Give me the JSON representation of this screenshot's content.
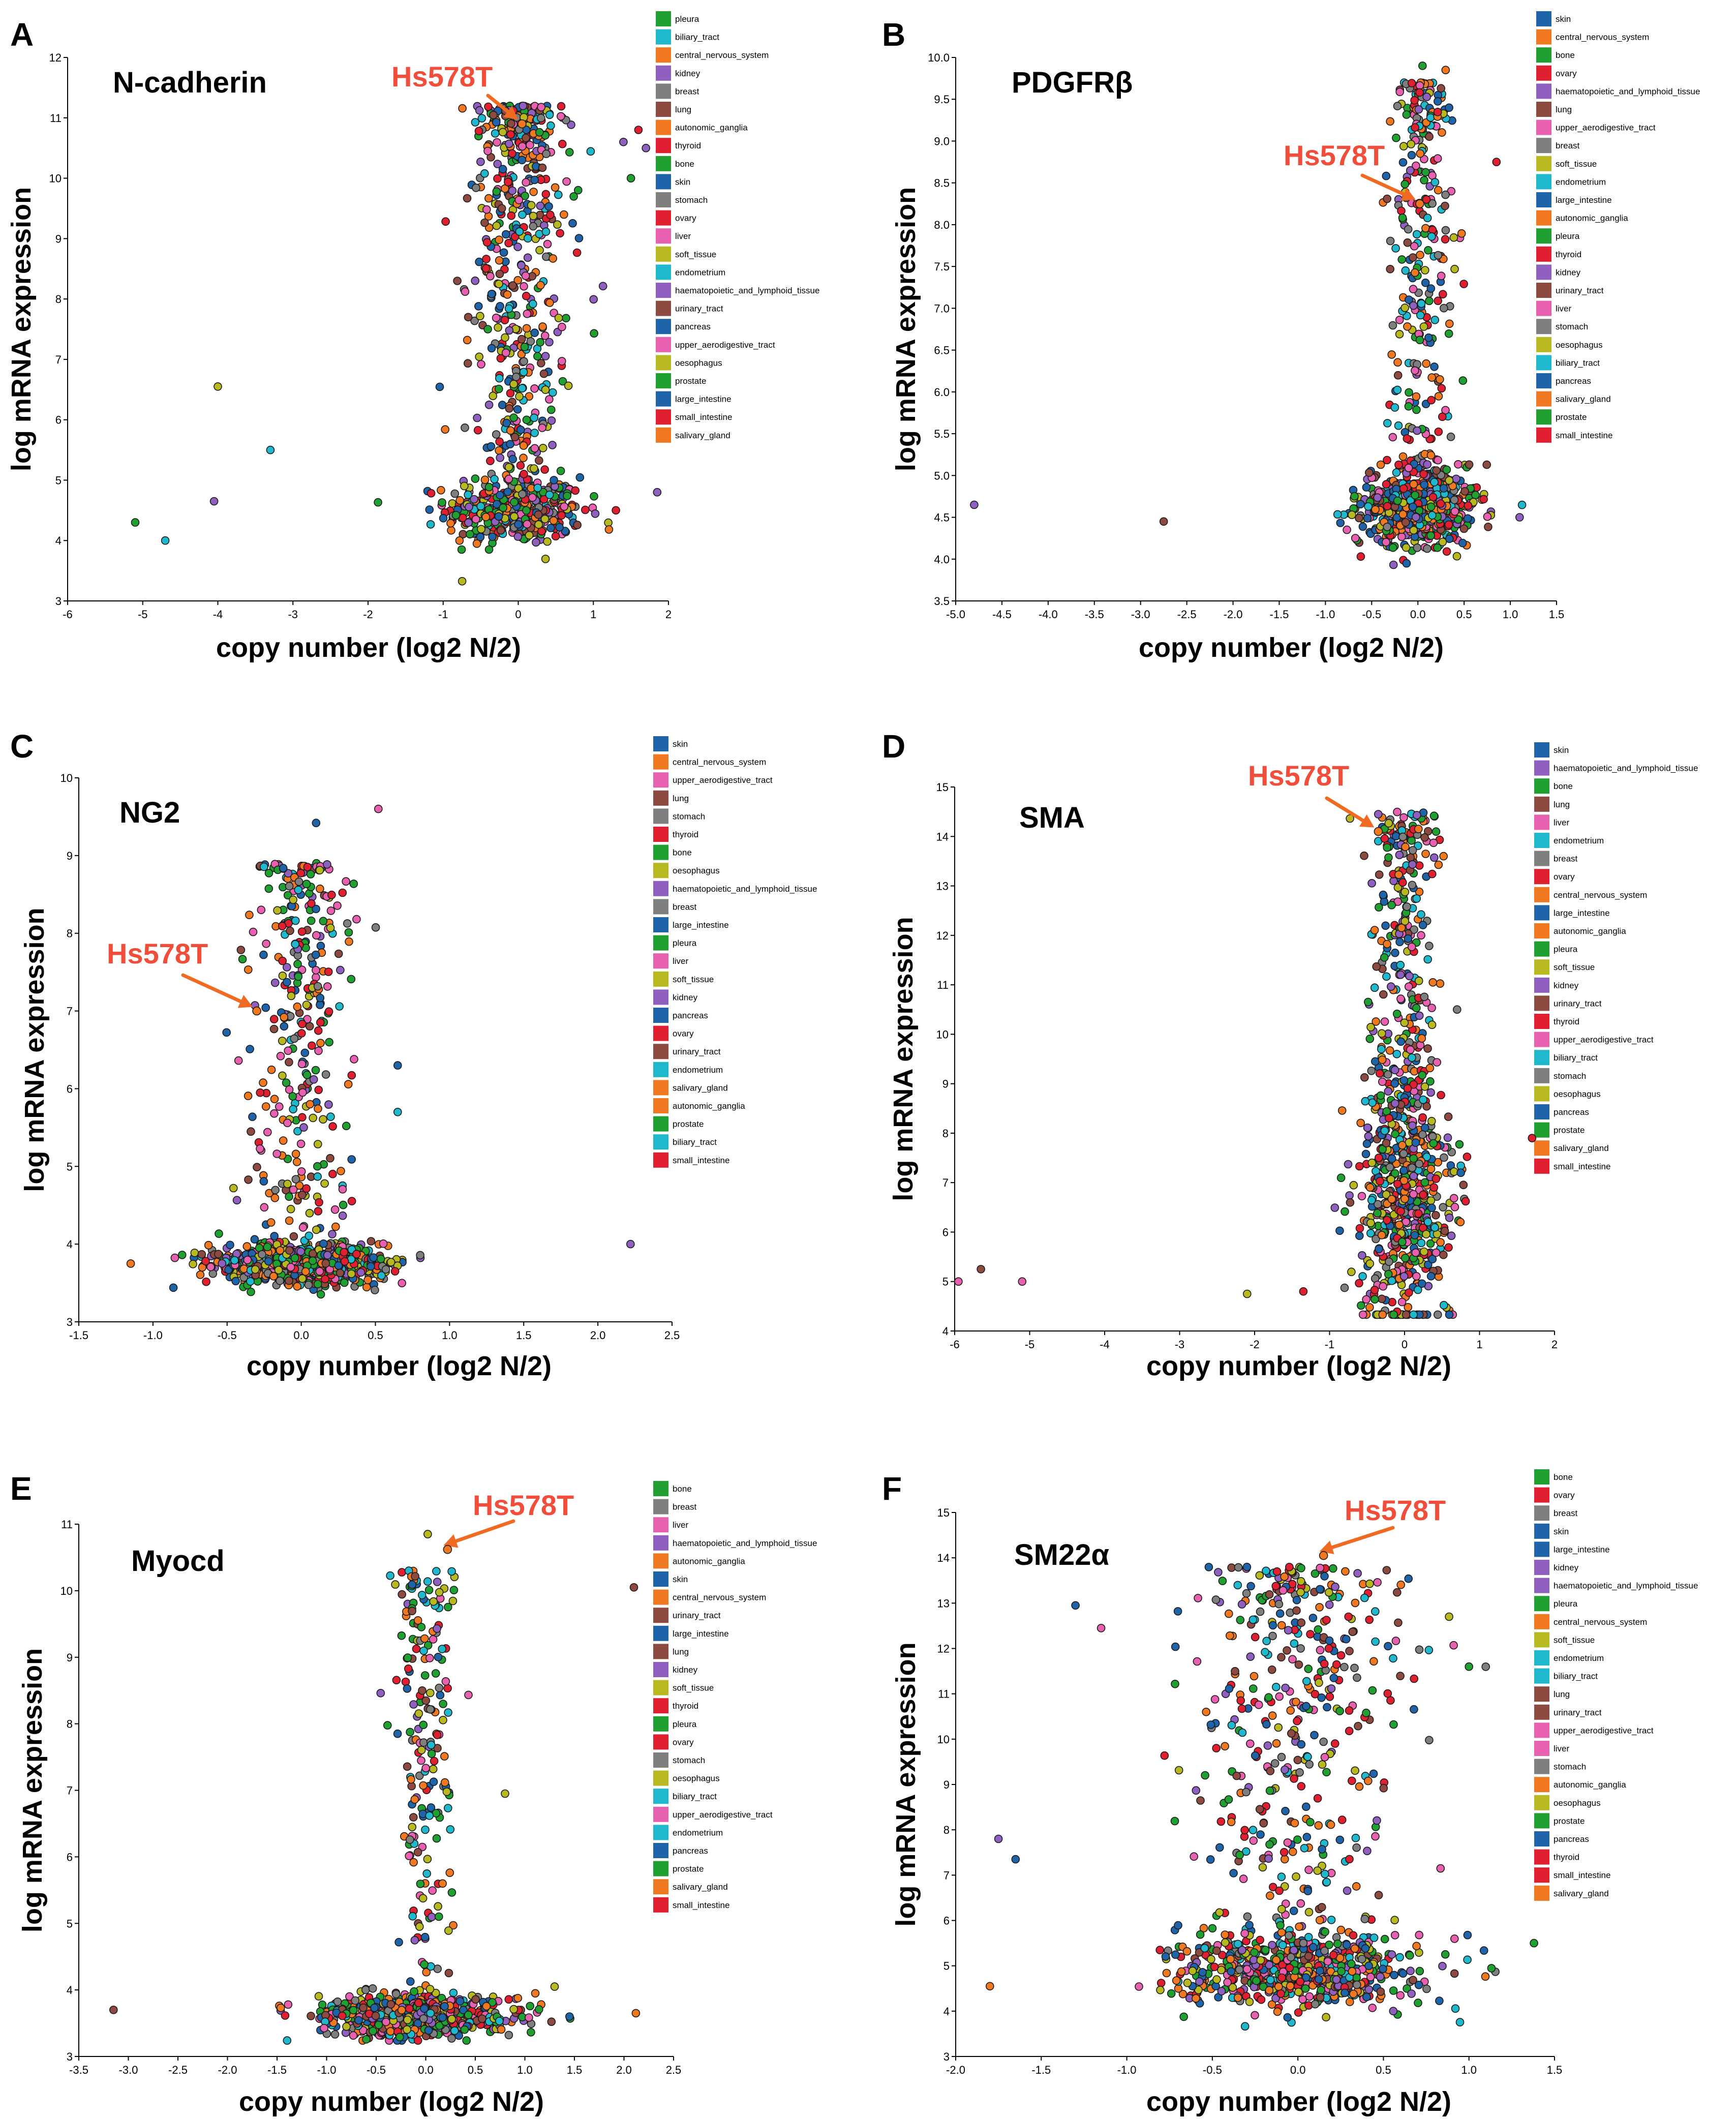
{
  "figure": {
    "callout_label": "Hs578T",
    "arrow_color": "#f06a22",
    "callout_color": "#f04e3a"
  },
  "palette": {
    "skin": "#1f63a8",
    "central_nervous_system": "#f07820",
    "bone": "#20a030",
    "ovary": "#e02030",
    "haematopoietic_and_lymphoid_tissue": "#9060c0",
    "lung": "#8c4a40",
    "upper_aerodigestive_tract": "#e860b0",
    "breast": "#7f7f7f",
    "soft_tissue": "#b8b820",
    "endometrium": "#20b8cc",
    "large_intestine": "#1f63a8",
    "autonomic_ganglia": "#f07820",
    "pleura": "#20a030",
    "thyroid": "#e02030",
    "kidney": "#9060c0",
    "urinary_tract": "#8c4a40",
    "liver": "#e860b0",
    "stomach": "#7f7f7f",
    "oesophagus": "#b8b820",
    "biliary_tract": "#20b8cc",
    "pancreas": "#1f63a8",
    "salivary_gland": "#f07820",
    "prostate": "#20a030",
    "small_intestine": "#e02030"
  },
  "chart_data": [
    {
      "type": "scatter",
      "panel": "A",
      "title": "N-cadherin",
      "xlabel": "copy number (log2 N/2)",
      "ylabel": "log mRNA expression",
      "xlim": [
        -6,
        2
      ],
      "ylim": [
        3,
        12
      ],
      "xticks": [
        "-6",
        "-5",
        "-4",
        "-3",
        "-2",
        "-1",
        "0",
        "1",
        "2"
      ],
      "yticks": [
        "3",
        "4",
        "5",
        "6",
        "7",
        "8",
        "9",
        "10",
        "11",
        "12"
      ],
      "highlight": {
        "label": "Hs578T",
        "x": 0.05,
        "y": 10.9
      },
      "legend": [
        "pleura",
        "biliary_tract",
        "central_nervous_system",
        "kidney",
        "breast",
        "lung",
        "autonomic_ganglia",
        "thyroid",
        "bone",
        "skin",
        "stomach",
        "ovary",
        "liver",
        "soft_tissue",
        "endometrium",
        "haematopoietic_and_lymphoid_tissue",
        "urinary_tract",
        "pancreas",
        "upper_aerodigestive_tract",
        "oesophagus",
        "prostate",
        "large_intestine",
        "small_intestine",
        "salivary_gland"
      ],
      "outliers": [
        [
          -5.1,
          4.3
        ],
        [
          -4.7,
          4.0
        ],
        [
          -4.05,
          4.65
        ],
        [
          -4.0,
          6.55
        ],
        [
          -3.3,
          5.5
        ],
        [
          1.3,
          4.5
        ],
        [
          1.85,
          4.8
        ],
        [
          1.6,
          10.8
        ],
        [
          1.7,
          10.5
        ],
        [
          1.5,
          10.0
        ],
        [
          1.4,
          10.6
        ]
      ],
      "clusters": [
        {
          "n": 420,
          "mx": -0.05,
          "sx": 0.45,
          "my": 4.5,
          "sy": 0.28
        },
        {
          "n": 520,
          "mx": 0.0,
          "sx": 0.4,
          "ylo": 5.0,
          "yhi": 11.2
        }
      ]
    },
    {
      "type": "scatter",
      "panel": "B",
      "title": "PDGFRβ",
      "xlabel": "copy number (log2 N/2)",
      "ylabel": "log mRNA expression",
      "xlim": [
        -5.0,
        1.5
      ],
      "ylim": [
        3.5,
        10.0
      ],
      "xticks": [
        "-5.0",
        "-4.5",
        "-4.0",
        "-3.5",
        "-3.0",
        "-2.5",
        "-2.0",
        "-1.5",
        "-1.0",
        "-0.5",
        "0.0",
        "0.5",
        "1.0",
        "1.5"
      ],
      "yticks": [
        "3.5",
        "4.0",
        "4.5",
        "5.0",
        "5.5",
        "6.0",
        "6.5",
        "7.0",
        "7.5",
        "8.0",
        "8.5",
        "9.0",
        "9.5",
        "10.0"
      ],
      "highlight": {
        "label": "Hs578T",
        "x": 0.02,
        "y": 8.25
      },
      "legend": [
        "skin",
        "central_nervous_system",
        "bone",
        "ovary",
        "haematopoietic_and_lymphoid_tissue",
        "lung",
        "upper_aerodigestive_tract",
        "breast",
        "soft_tissue",
        "endometrium",
        "large_intestine",
        "autonomic_ganglia",
        "pleura",
        "thyroid",
        "kidney",
        "urinary_tract",
        "liver",
        "stomach",
        "oesophagus",
        "biliary_tract",
        "pancreas",
        "salivary_gland",
        "prostate",
        "small_intestine"
      ],
      "outliers": [
        [
          -4.8,
          4.65
        ],
        [
          -2.75,
          4.45
        ],
        [
          1.1,
          4.5
        ],
        [
          0.85,
          8.75
        ],
        [
          0.3,
          9.85
        ],
        [
          0.05,
          9.9
        ]
      ],
      "clusters": [
        {
          "n": 700,
          "mx": 0.0,
          "sx": 0.3,
          "my": 4.6,
          "sy": 0.22
        },
        {
          "n": 280,
          "mx": 0.05,
          "sx": 0.22,
          "ylo": 5.0,
          "yhi": 9.7
        }
      ]
    },
    {
      "type": "scatter",
      "panel": "C",
      "title": "NG2",
      "xlabel": "copy number (log2 N/2)",
      "ylabel": "log mRNA expression",
      "xlim": [
        -1.5,
        2.5
      ],
      "ylim": [
        3,
        10
      ],
      "xticks": [
        "-1.5",
        "-1.0",
        "-0.5",
        "0.0",
        "0.5",
        "1.0",
        "1.5",
        "2.0",
        "2.5"
      ],
      "yticks": [
        "3",
        "4",
        "5",
        "6",
        "7",
        "8",
        "9",
        "10"
      ],
      "highlight": {
        "label": "Hs578T",
        "x": -0.3,
        "y": 7.0
      },
      "legend": [
        "skin",
        "central_nervous_system",
        "upper_aerodigestive_tract",
        "lung",
        "stomach",
        "thyroid",
        "bone",
        "oesophagus",
        "haematopoietic_and_lymphoid_tissue",
        "breast",
        "large_intestine",
        "pleura",
        "liver",
        "soft_tissue",
        "kidney",
        "pancreas",
        "ovary",
        "urinary_tract",
        "endometrium",
        "salivary_gland",
        "autonomic_ganglia",
        "prostate",
        "biliary_tract",
        "small_intestine"
      ],
      "outliers": [
        [
          2.22,
          4.0
        ],
        [
          0.52,
          9.6
        ],
        [
          0.1,
          9.42
        ],
        [
          -1.15,
          3.75
        ],
        [
          0.65,
          6.3
        ],
        [
          0.65,
          5.7
        ]
      ],
      "clusters": [
        {
          "n": 900,
          "mx": 0.0,
          "sx": 0.28,
          "my": 3.75,
          "sy": 0.12
        },
        {
          "n": 320,
          "mx": 0.0,
          "sx": 0.22,
          "ylo": 4.1,
          "yhi": 8.9
        }
      ]
    },
    {
      "type": "scatter",
      "panel": "D",
      "title": "SMA",
      "xlabel": "copy number (log2 N/2)",
      "ylabel": "log mRNA expression",
      "xlim": [
        -6,
        2
      ],
      "ylim": [
        4,
        15
      ],
      "xticks": [
        "-6",
        "-5",
        "-4",
        "-3",
        "-2",
        "-1",
        "0",
        "1",
        "2"
      ],
      "yticks": [
        "4",
        "5",
        "6",
        "7",
        "8",
        "9",
        "10",
        "11",
        "12",
        "13",
        "14",
        "15"
      ],
      "highlight": {
        "label": "Hs578T",
        "x": -0.35,
        "y": 14.1
      },
      "legend": [
        "skin",
        "haematopoietic_and_lymphoid_tissue",
        "bone",
        "lung",
        "liver",
        "endometrium",
        "breast",
        "ovary",
        "central_nervous_system",
        "large_intestine",
        "autonomic_ganglia",
        "pleura",
        "soft_tissue",
        "kidney",
        "urinary_tract",
        "thyroid",
        "upper_aerodigestive_tract",
        "biliary_tract",
        "stomach",
        "oesophagus",
        "pancreas",
        "prostate",
        "salivary_gland",
        "small_intestine"
      ],
      "outliers": [
        [
          -5.95,
          5.0
        ],
        [
          -5.65,
          5.25
        ],
        [
          -5.1,
          5.0
        ],
        [
          -2.1,
          4.75
        ],
        [
          -1.35,
          4.8
        ],
        [
          1.7,
          7.9
        ],
        [
          0.7,
          10.5
        ],
        [
          0.75,
          7.2
        ]
      ],
      "clusters": [
        {
          "n": 650,
          "mx": 0.0,
          "sx": 0.3,
          "my": 6.8,
          "sy": 1.3
        },
        {
          "n": 260,
          "mx": 0.0,
          "sx": 0.28,
          "ylo": 8.5,
          "yhi": 14.5
        }
      ]
    },
    {
      "type": "scatter",
      "panel": "E",
      "title": "Myocd",
      "xlabel": "copy number (log2 N/2)",
      "ylabel": "log mRNA expression",
      "xlim": [
        -3.5,
        2.5
      ],
      "ylim": [
        3,
        11
      ],
      "xticks": [
        "-3.5",
        "-3.0",
        "-2.5",
        "-2.0",
        "-1.5",
        "-1.0",
        "-0.5",
        "0.0",
        "0.5",
        "1.0",
        "1.5",
        "2.0",
        "2.5"
      ],
      "yticks": [
        "3",
        "4",
        "5",
        "6",
        "7",
        "8",
        "9",
        "10",
        "11"
      ],
      "highlight": {
        "label": "Hs578T",
        "x": 0.22,
        "y": 10.62
      },
      "legend": [
        "bone",
        "breast",
        "liver",
        "haematopoietic_and_lymphoid_tissue",
        "autonomic_ganglia",
        "skin",
        "central_nervous_system",
        "urinary_tract",
        "large_intestine",
        "lung",
        "kidney",
        "soft_tissue",
        "thyroid",
        "pleura",
        "ovary",
        "stomach",
        "oesophagus",
        "biliary_tract",
        "upper_aerodigestive_tract",
        "endometrium",
        "pancreas",
        "prostate",
        "salivary_gland",
        "small_intestine"
      ],
      "outliers": [
        [
          -3.15,
          3.7
        ],
        [
          2.1,
          10.05
        ],
        [
          2.12,
          3.65
        ],
        [
          1.3,
          4.05
        ],
        [
          1.45,
          3.6
        ],
        [
          0.8,
          6.95
        ],
        [
          0.02,
          10.85
        ]
      ],
      "clusters": [
        {
          "n": 800,
          "mx": -0.1,
          "sx": 0.45,
          "my": 3.6,
          "sy": 0.15
        },
        {
          "n": 200,
          "mx": 0.0,
          "sx": 0.2,
          "ylo": 4.0,
          "yhi": 10.3
        }
      ]
    },
    {
      "type": "scatter",
      "panel": "F",
      "title": "SM22α",
      "xlabel": "copy number (log2 N/2)",
      "ylabel": "log mRNA expression",
      "xlim": [
        -2.0,
        1.5
      ],
      "ylim": [
        3,
        15
      ],
      "xticks": [
        "-2.0",
        "-1.5",
        "-1.0",
        "-0.5",
        "0.0",
        "0.5",
        "1.0",
        "1.5"
      ],
      "yticks": [
        "3",
        "4",
        "5",
        "6",
        "7",
        "8",
        "9",
        "10",
        "11",
        "12",
        "13",
        "14",
        "15"
      ],
      "highlight": {
        "label": "Hs578T",
        "x": 0.15,
        "y": 14.05
      },
      "legend": [
        "bone",
        "ovary",
        "breast",
        "skin",
        "large_intestine",
        "kidney",
        "haematopoietic_and_lymphoid_tissue",
        "pleura",
        "central_nervous_system",
        "soft_tissue",
        "endometrium",
        "biliary_tract",
        "lung",
        "urinary_tract",
        "upper_aerodigestive_tract",
        "liver",
        "stomach",
        "autonomic_ganglia",
        "oesophagus",
        "prostate",
        "pancreas",
        "thyroid",
        "small_intestine",
        "salivary_gland"
      ],
      "outliers": [
        [
          -1.8,
          4.55
        ],
        [
          -1.75,
          7.8
        ],
        [
          -1.65,
          7.35
        ],
        [
          1.38,
          5.5
        ],
        [
          1.0,
          11.6
        ],
        [
          -1.3,
          12.95
        ],
        [
          -1.15,
          12.45
        ]
      ],
      "clusters": [
        {
          "n": 620,
          "mx": 0.0,
          "sx": 0.35,
          "my": 4.9,
          "sy": 0.4
        },
        {
          "n": 420,
          "mx": 0.0,
          "sx": 0.38,
          "ylo": 5.5,
          "yhi": 13.8
        }
      ]
    }
  ]
}
